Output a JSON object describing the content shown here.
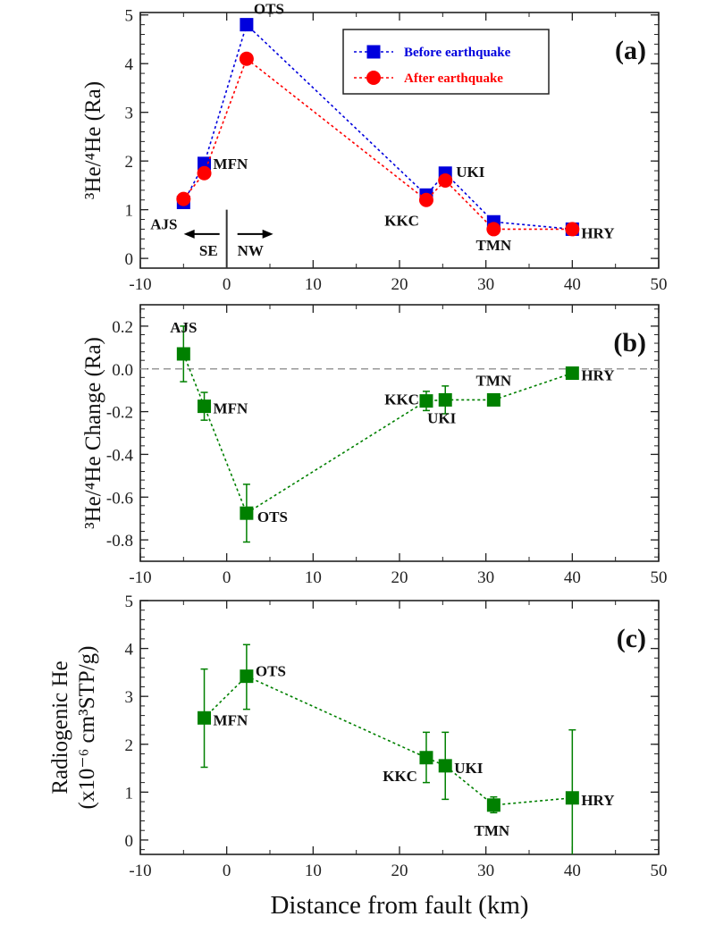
{
  "chart_data": [
    {
      "type": "line",
      "panel_label": "(a)",
      "ylabel": "³He/⁴He (Ra)",
      "xlim": [
        -10,
        50
      ],
      "ylim": [
        -0.2,
        5.05
      ],
      "xticks": [
        -10,
        0,
        10,
        20,
        30,
        40,
        50
      ],
      "yticks": [
        0,
        1,
        2,
        3,
        4,
        5
      ],
      "grid": false,
      "legend_placement": "top-right",
      "sites": [
        "AJS",
        "MFN",
        "OTS",
        "KKC",
        "UKI",
        "TMN",
        "HRY"
      ],
      "x": [
        -5,
        -2.6,
        2.3,
        23.1,
        25.3,
        30.9,
        40
      ],
      "series": [
        {
          "name": "Before earthquake",
          "marker": "square",
          "color": "#0000dd",
          "values": [
            1.15,
            1.95,
            4.8,
            1.3,
            1.75,
            0.75,
            0.6
          ]
        },
        {
          "name": "After earthquake",
          "marker": "circle",
          "color": "#ff0000",
          "values": [
            1.22,
            1.75,
            4.1,
            1.2,
            1.6,
            0.6,
            0.6
          ]
        }
      ],
      "annotations": {
        "fault_x": 0,
        "left_arrow": "SE",
        "right_arrow": "NW"
      }
    },
    {
      "type": "line",
      "panel_label": "(b)",
      "ylabel": "³He/⁴He Change (Ra)",
      "xlim": [
        -10,
        50
      ],
      "ylim": [
        -0.9,
        0.3
      ],
      "xticks": [
        -10,
        0,
        10,
        20,
        30,
        40,
        50
      ],
      "yticks": [
        "0.2",
        "0.0",
        "-0.2",
        "-0.4",
        "-0.6",
        "-0.8"
      ],
      "grid": false,
      "reference_line_y": 0,
      "sites": [
        "AJS",
        "MFN",
        "OTS",
        "KKC",
        "UKI",
        "TMN",
        "HRY"
      ],
      "x": [
        -5,
        -2.6,
        2.3,
        23.1,
        25.3,
        30.9,
        40
      ],
      "series": [
        {
          "marker": "square",
          "color": "#008000",
          "values": [
            0.07,
            -0.175,
            -0.675,
            -0.15,
            -0.145,
            -0.145,
            -0.02
          ],
          "error": [
            0.13,
            0.065,
            0.135,
            0.045,
            0.065,
            0.025,
            0
          ]
        }
      ]
    },
    {
      "type": "line",
      "panel_label": "(c)",
      "ylabel": [
        "Radiogenic He",
        "(x10⁻⁶ cm³STP/g)"
      ],
      "xlabel": "Distance from fault (km)",
      "xlim": [
        -10,
        50
      ],
      "ylim": [
        -0.3,
        5
      ],
      "xticks": [
        -10,
        0,
        10,
        20,
        30,
        40,
        50
      ],
      "yticks": [
        0,
        1,
        2,
        3,
        4,
        5
      ],
      "grid": false,
      "sites": [
        "MFN",
        "OTS",
        "KKC",
        "UKI",
        "TMN",
        "HRY"
      ],
      "x": [
        -2.6,
        2.3,
        23.1,
        25.3,
        30.9,
        40
      ],
      "series": [
        {
          "marker": "square",
          "color": "#008000",
          "values": [
            2.55,
            3.42,
            1.72,
            1.55,
            0.73,
            0.88
          ],
          "error_low": [
            1.52,
            2.73,
            1.2,
            0.85,
            0.57,
            -0.55
          ],
          "error_high": [
            3.57,
            4.08,
            2.25,
            2.25,
            0.9,
            2.3
          ]
        }
      ]
    }
  ]
}
